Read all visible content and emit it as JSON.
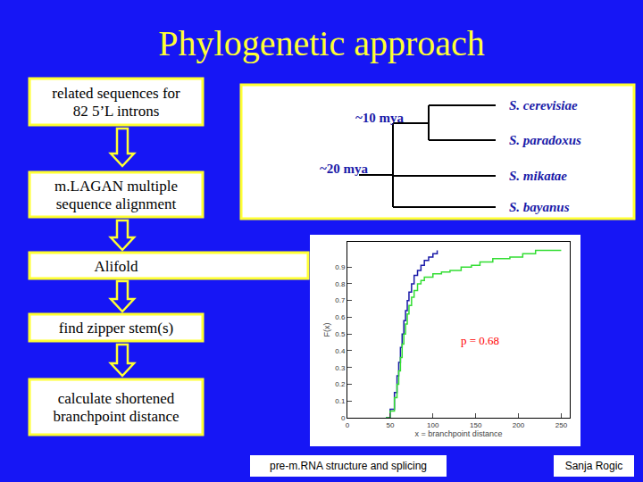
{
  "title": "Phylogenetic approach",
  "workflow": [
    {
      "lines": [
        "related sequences for",
        "82 5’L introns"
      ]
    },
    {
      "lines": [
        "m.LAGAN multiple",
        "sequence alignment"
      ]
    },
    {
      "lines": [
        "Alifold"
      ]
    },
    {
      "lines": [
        "find zipper stem(s)"
      ]
    },
    {
      "lines": [
        "calculate shortened",
        "branchpoint distance"
      ]
    }
  ],
  "tree": {
    "leaves": [
      "S. cerevisiae",
      "S. paradoxus",
      "S. mikatae",
      "S. bayanus"
    ],
    "divergences": [
      "~10 mya",
      "~20 mya"
    ]
  },
  "chart_data": {
    "type": "line",
    "line_style": "step",
    "x_label": "x = branchpoint distance",
    "y_label": "F(x)",
    "xlim": [
      0,
      260
    ],
    "xticks": [
      0,
      50,
      100,
      150,
      200,
      250
    ],
    "ylim": [
      0,
      1.05
    ],
    "yticks": [
      0,
      0.1,
      0.2,
      0.3,
      0.4,
      0.5,
      0.6,
      0.7,
      0.8,
      0.9
    ],
    "grid": false,
    "series": [
      {
        "color": "#1a1aa8",
        "x": [
          45,
          50,
          55,
          58,
          60,
          62,
          64,
          66,
          68,
          70,
          72,
          75,
          78,
          82,
          86,
          90,
          95,
          100,
          105
        ],
        "values": [
          0,
          0.05,
          0.15,
          0.25,
          0.33,
          0.42,
          0.5,
          0.58,
          0.64,
          0.7,
          0.75,
          0.8,
          0.85,
          0.88,
          0.91,
          0.94,
          0.96,
          0.98,
          1.0
        ]
      },
      {
        "color": "#33dd33",
        "x": [
          45,
          50,
          55,
          58,
          60,
          62,
          64,
          66,
          68,
          70,
          72,
          75,
          78,
          82,
          86,
          90,
          100,
          110,
          120,
          133,
          145,
          155,
          170,
          190,
          205,
          220,
          250
        ],
        "values": [
          0,
          0.04,
          0.12,
          0.2,
          0.28,
          0.36,
          0.44,
          0.5,
          0.56,
          0.62,
          0.67,
          0.72,
          0.76,
          0.8,
          0.82,
          0.84,
          0.86,
          0.87,
          0.88,
          0.9,
          0.91,
          0.93,
          0.95,
          0.96,
          0.98,
          1.0,
          1.0
        ]
      }
    ],
    "annotations": [
      {
        "text": "p = 0.68",
        "x": 155,
        "y": 0.46,
        "color": "#ff0000"
      }
    ]
  },
  "footer": {
    "left": "pre-m.RNA structure and splicing",
    "right": "Sanja Rogic"
  }
}
